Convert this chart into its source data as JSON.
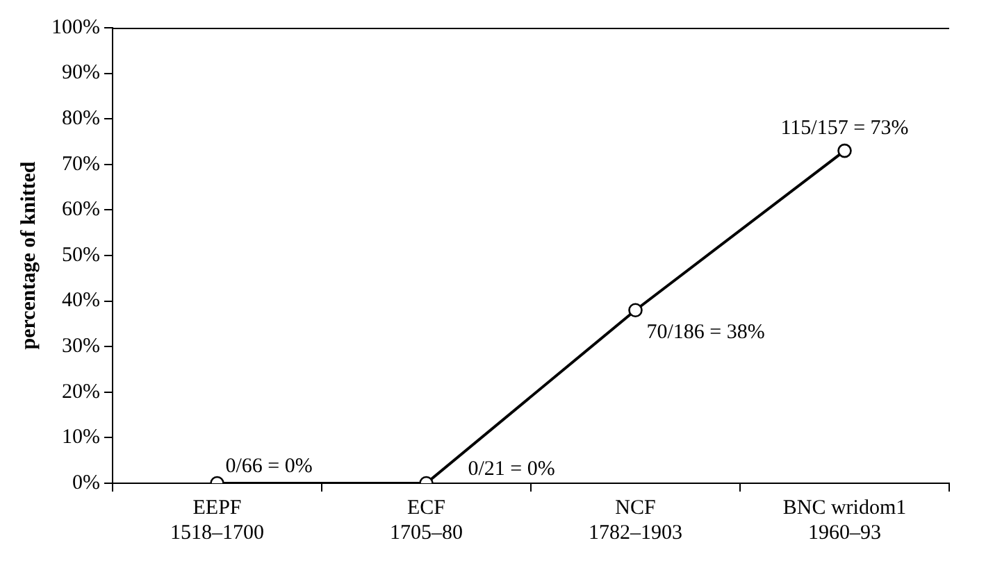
{
  "chart_data": {
    "type": "line",
    "ylabel": "percentage of knitted",
    "categories": [
      "EEPF\n1518–1700",
      "ECF\n1705–80",
      "NCF\n1782–1903",
      "BNC wridom1\n1960–93"
    ],
    "series": [
      {
        "color": "#000000",
        "values": [
          0,
          0,
          38,
          73
        ],
        "value_labels": [
          "0/66 = 0%",
          "0/21 = 0%",
          "70/186 = 38%",
          "115/157 = 73%"
        ]
      }
    ],
    "ylim": [
      0,
      100
    ],
    "yticks": [
      {
        "value": 0,
        "label": "0%"
      },
      {
        "value": 10,
        "label": "10%"
      },
      {
        "value": 20,
        "label": "20%"
      },
      {
        "value": 30,
        "label": "30%"
      },
      {
        "value": 40,
        "label": "40%"
      },
      {
        "value": 50,
        "label": "50%"
      },
      {
        "value": 60,
        "label": "60%"
      },
      {
        "value": 70,
        "label": "70%"
      },
      {
        "value": 80,
        "label": "80%"
      },
      {
        "value": 90,
        "label": "90%"
      },
      {
        "value": 100,
        "label": "100%"
      }
    ],
    "grid": false,
    "legend": false,
    "marker": "circle",
    "line_style": "solid"
  }
}
